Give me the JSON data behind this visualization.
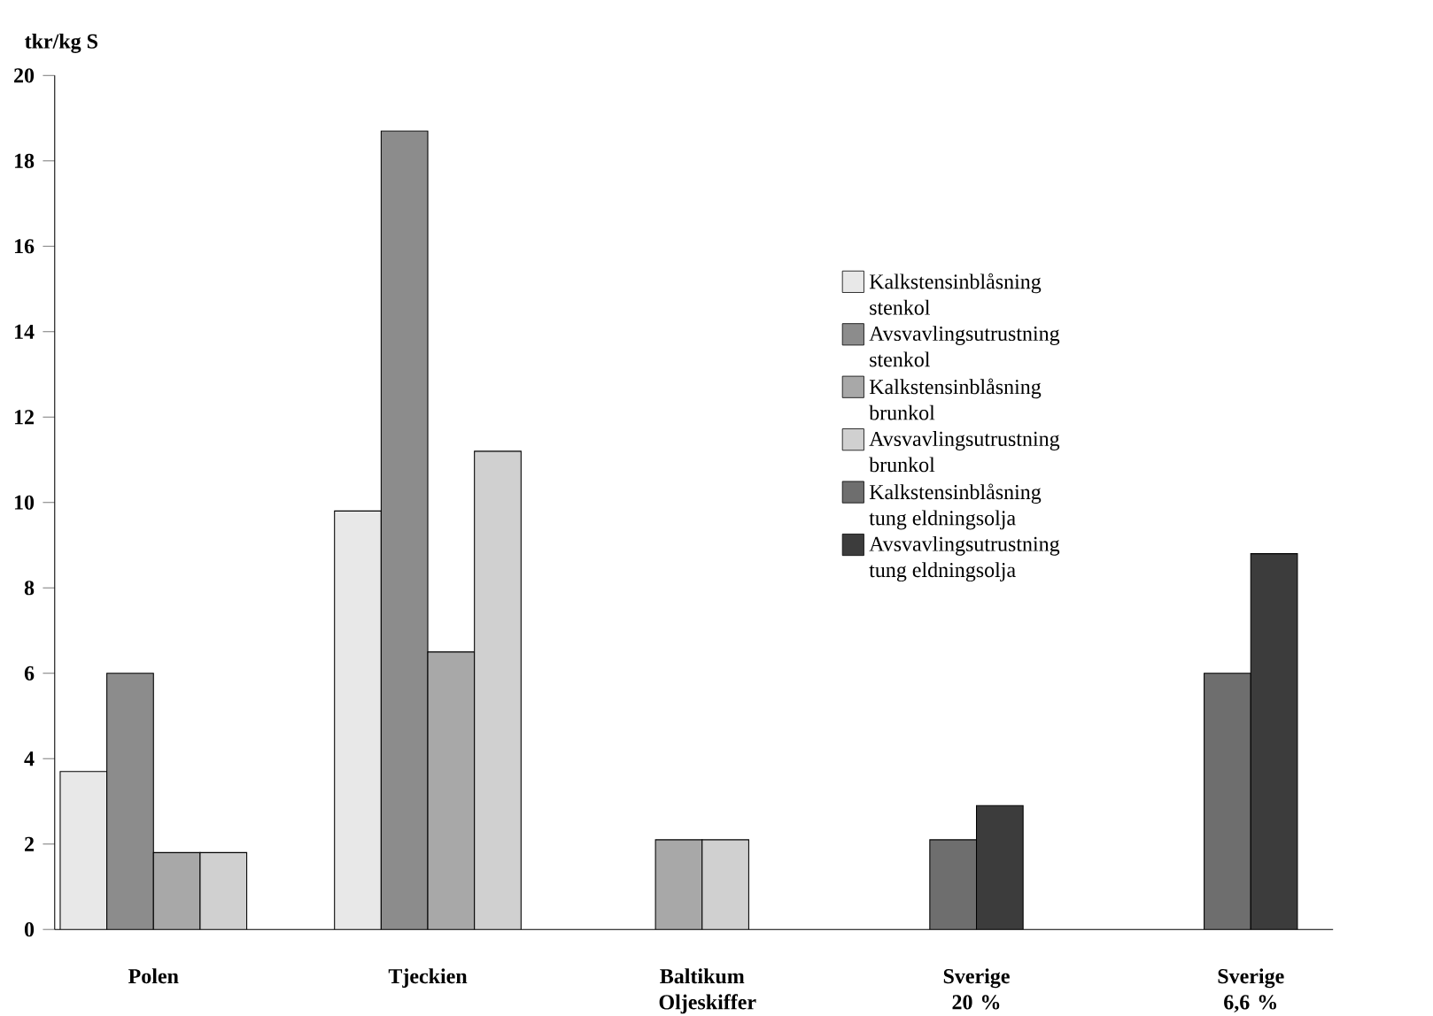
{
  "chart_data": {
    "type": "bar",
    "ylabel": "tkr/kg S",
    "categories": [
      "Polen",
      "Tjeckien",
      "Baltikum Oljeskiffer",
      "Sverige 20 %",
      "Sverige 6,6 %"
    ],
    "series": [
      {
        "name": "Kalkstensinblåsning stenkol",
        "color": "#e8e8e8",
        "values": [
          3.7,
          9.8,
          null,
          null,
          null
        ]
      },
      {
        "name": "Avsvavlingsutrustning stenkol",
        "color": "#8c8c8c",
        "values": [
          6.0,
          18.7,
          null,
          null,
          null
        ]
      },
      {
        "name": "Kalkstensinblåsning brunkol",
        "color": "#a8a8a8",
        "values": [
          1.8,
          6.5,
          2.1,
          null,
          null
        ]
      },
      {
        "name": "Avsvavlingsutrustning brunkol",
        "color": "#d0d0d0",
        "values": [
          1.8,
          11.2,
          2.1,
          null,
          null
        ]
      },
      {
        "name": "Kalkstensinblåsning tung eldningsolja",
        "color": "#6e6e6e",
        "values": [
          null,
          null,
          null,
          2.1,
          6.0
        ]
      },
      {
        "name": "Avsvavlingsutrustning tung eldningsolja",
        "color": "#3c3c3c",
        "values": [
          null,
          null,
          null,
          2.9,
          8.8
        ]
      }
    ],
    "ylim": [
      0,
      20
    ],
    "yticks": [
      0,
      2,
      4,
      6,
      8,
      10,
      12,
      14,
      16,
      18,
      20
    ],
    "grid": false,
    "legend": "right"
  }
}
